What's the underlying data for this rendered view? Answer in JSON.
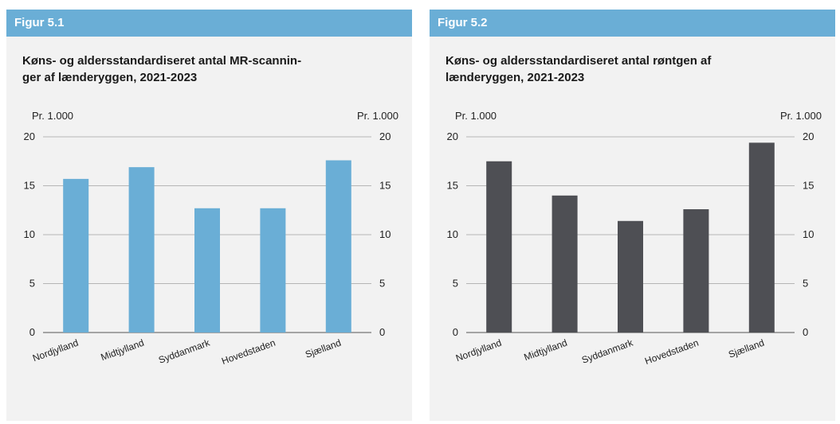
{
  "chart_data": [
    {
      "type": "bar",
      "figure_label": "Figur 5.1",
      "title": "Køns- og aldersstandardiseret antal MR-scanninger af lænderyggen, 2021-2023",
      "title_lines": [
        "Køns- og aldersstandardiseret antal MR-scannin-",
        "ger af lænderyggen, 2021-2023"
      ],
      "unit_left": "Pr. 1.000",
      "unit_right": "Pr. 1.000",
      "categories": [
        "Nordjylland",
        "Midtjylland",
        "Syddanmark",
        "Hovedstaden",
        "Sjælland"
      ],
      "values": [
        15.7,
        16.9,
        12.7,
        12.7,
        17.6
      ],
      "ylim": [
        0,
        20
      ],
      "yticks": [
        0,
        5,
        10,
        15,
        20
      ],
      "grid": true,
      "bar_color": "#6aaed6"
    },
    {
      "type": "bar",
      "figure_label": "Figur 5.2",
      "title": "Køns- og aldersstandardiseret antal røntgen af lænderyggen, 2021-2023",
      "title_lines": [
        "Køns- og aldersstandardiseret antal røntgen af",
        "lænderyggen, 2021-2023"
      ],
      "unit_left": "Pr. 1.000",
      "unit_right": "Pr. 1.000",
      "categories": [
        "Nordjylland",
        "Midtjylland",
        "Syddanmark",
        "Hovedstaden",
        "Sjælland"
      ],
      "values": [
        17.5,
        14.0,
        11.4,
        12.6,
        19.4
      ],
      "ylim": [
        0,
        20
      ],
      "yticks": [
        0,
        5,
        10,
        15,
        20
      ],
      "grid": true,
      "bar_color": "#4e4f54"
    }
  ]
}
